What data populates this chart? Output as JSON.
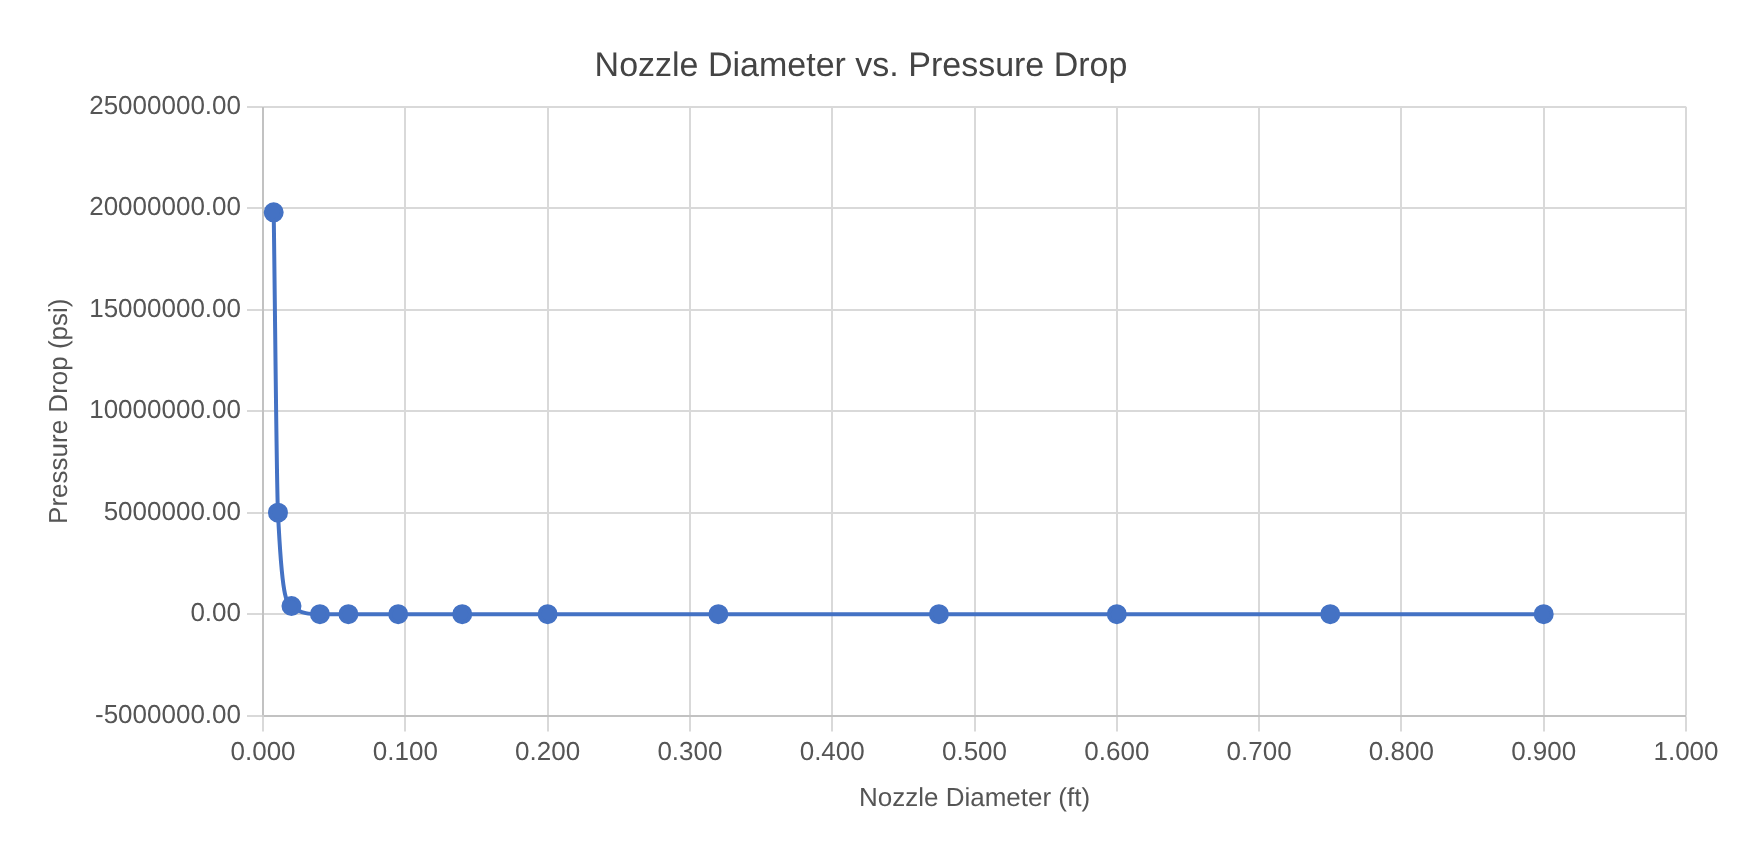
{
  "chart_data": {
    "type": "line",
    "title": "Nozzle Diameter vs. Pressure Drop",
    "xlabel": "Nozzle Diameter (ft)",
    "ylabel": "Pressure Drop (psi)",
    "x": [
      0.0075,
      0.0105,
      0.02,
      0.04,
      0.06,
      0.095,
      0.14,
      0.2,
      0.32,
      0.475,
      0.6,
      0.75,
      0.9
    ],
    "series": [
      {
        "color": "#4472c4",
        "values": [
          19800000,
          5000000,
          400000,
          0,
          0,
          0,
          0,
          0,
          0,
          0,
          0,
          0,
          0
        ]
      }
    ],
    "xlim": [
      0,
      1
    ],
    "xticks": [
      {
        "value": 0,
        "label": "0.000"
      },
      {
        "value": 0.1,
        "label": "0.100"
      },
      {
        "value": 0.2,
        "label": "0.200"
      },
      {
        "value": 0.3,
        "label": "0.300"
      },
      {
        "value": 0.4,
        "label": "0.400"
      },
      {
        "value": 0.5,
        "label": "0.500"
      },
      {
        "value": 0.6,
        "label": "0.600"
      },
      {
        "value": 0.7,
        "label": "0.700"
      },
      {
        "value": 0.8,
        "label": "0.800"
      },
      {
        "value": 0.9,
        "label": "0.900"
      },
      {
        "value": 1,
        "label": "1.000"
      }
    ],
    "ylim": [
      -5000000,
      25000000
    ],
    "yticks": [
      {
        "value": -5000000,
        "label": "-5000000.00"
      },
      {
        "value": 0,
        "label": "0.00"
      },
      {
        "value": 5000000,
        "label": "5000000.00"
      },
      {
        "value": 10000000,
        "label": "10000000.00"
      },
      {
        "value": 15000000,
        "label": "15000000.00"
      },
      {
        "value": 20000000,
        "label": "20000000.00"
      },
      {
        "value": 25000000,
        "label": "25000000.00"
      }
    ],
    "grid": true,
    "legend": false,
    "marker": "circle",
    "line_style": "solid"
  }
}
